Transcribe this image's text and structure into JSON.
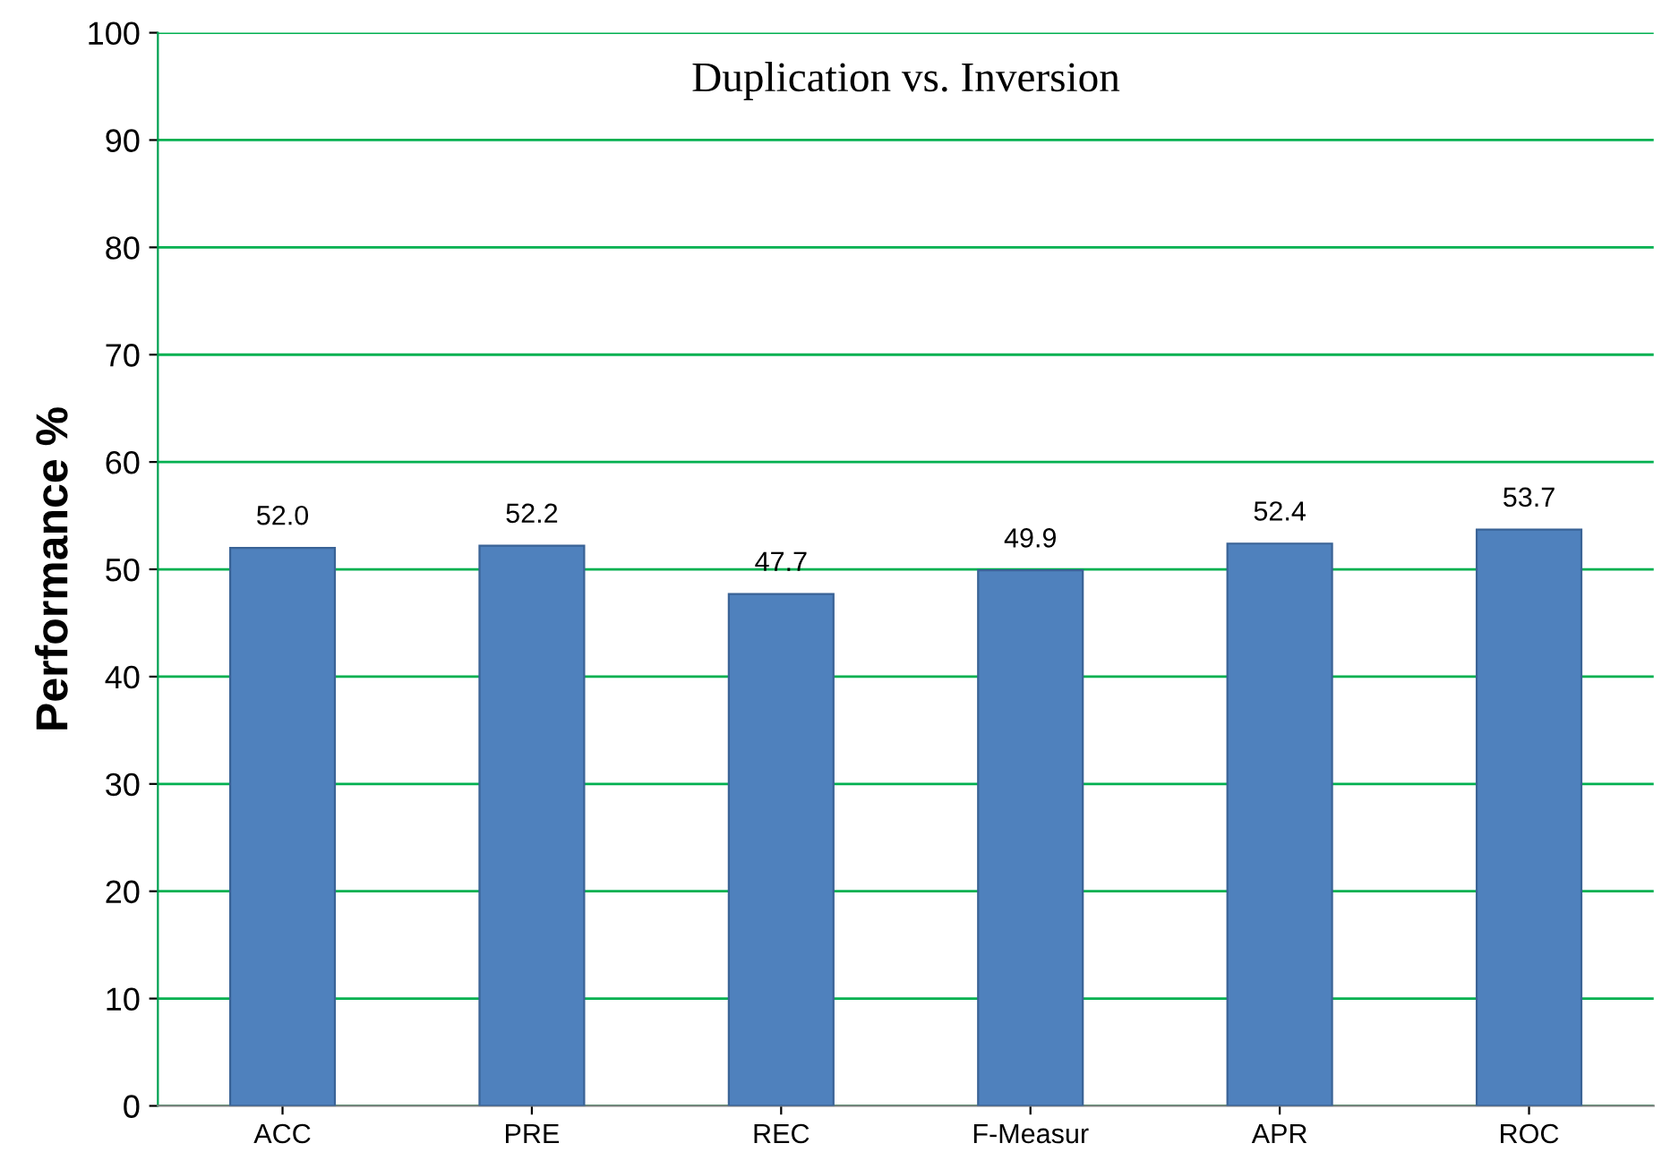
{
  "chart_data": {
    "type": "bar",
    "title": "Duplication vs. Inversion",
    "ylabel": "Performance %",
    "categories": [
      "ACC",
      "PRE",
      "REC",
      "F-Measur",
      "APR",
      "ROC"
    ],
    "values": [
      52.0,
      52.2,
      47.7,
      49.9,
      52.4,
      53.7
    ],
    "value_labels": [
      "52.0",
      "52.2",
      "47.7",
      "49.9",
      "52.4",
      "53.7"
    ],
    "color": "#4f81bd",
    "ylim": [
      0,
      100
    ],
    "yticks": [
      0,
      10,
      20,
      30,
      40,
      50,
      60,
      70,
      80,
      90,
      100
    ],
    "grid": "y",
    "legend": false
  }
}
